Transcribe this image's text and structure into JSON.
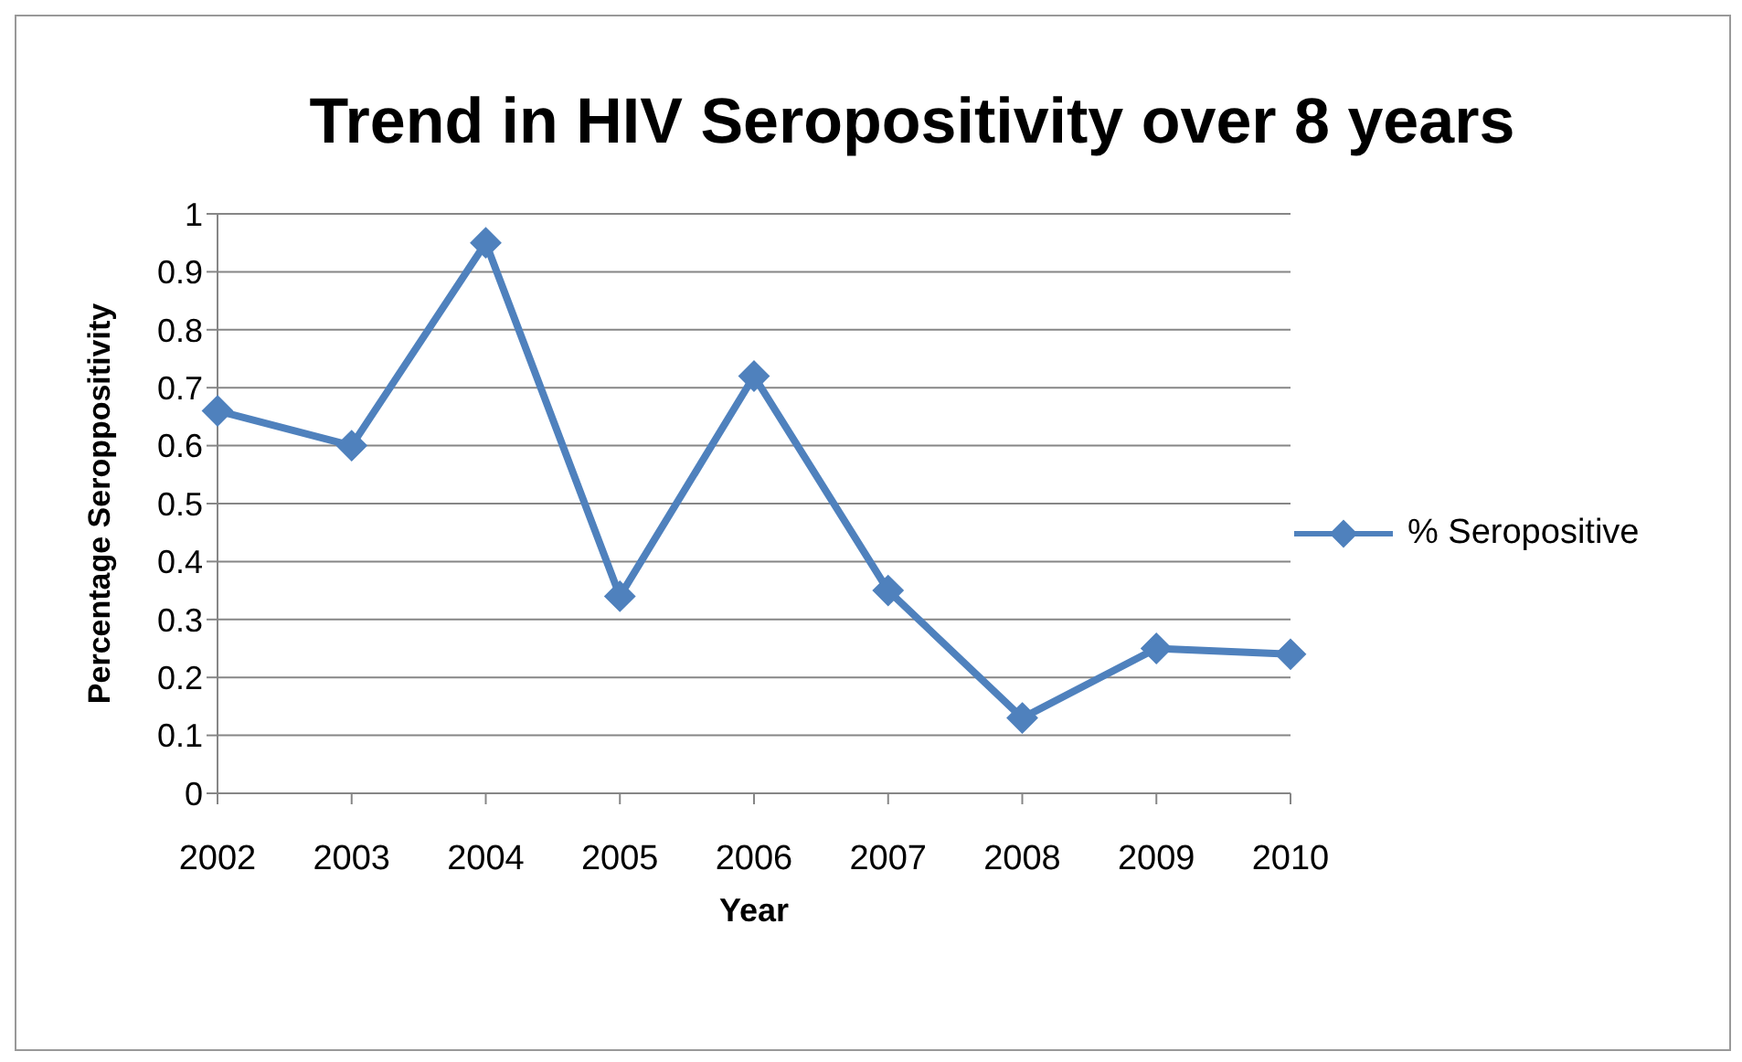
{
  "chart_data": {
    "type": "line",
    "title": "Trend in HIV Seropositivity over 8 years",
    "xlabel": "Year",
    "ylabel": "Percentage Seroppositivity",
    "categories": [
      "2002",
      "2003",
      "2004",
      "2005",
      "2006",
      "2007",
      "2008",
      "2009",
      "2010"
    ],
    "series": [
      {
        "name": "% Seropositive",
        "color": "#4f81bd",
        "values": [
          0.66,
          0.6,
          0.95,
          0.34,
          0.72,
          0.35,
          0.13,
          0.25,
          0.24
        ]
      }
    ],
    "ylim": [
      0,
      1
    ],
    "yticks": [
      0,
      0.1,
      0.2,
      0.3,
      0.4,
      0.5,
      0.6,
      0.7,
      0.8,
      0.9,
      1
    ],
    "grid": "y",
    "legend": "right",
    "marker": "diamond",
    "line_style": "solid"
  }
}
